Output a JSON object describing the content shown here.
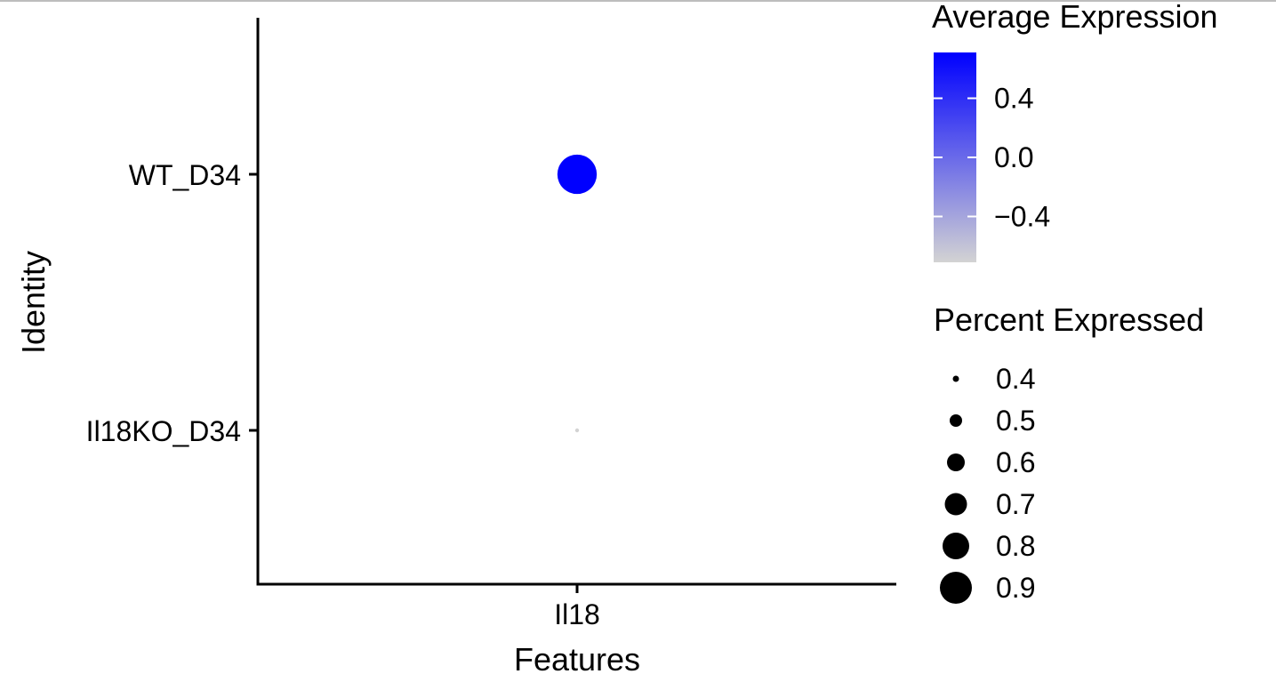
{
  "chart_data": {
    "type": "scatter",
    "subtype": "dot-plot",
    "xlabel": "Features",
    "ylabel": "Identity",
    "categories_x": [
      "Il18"
    ],
    "categories_y": [
      "WT_D34",
      "Il18KO_D34"
    ],
    "points": [
      {
        "feature": "Il18",
        "identity": "WT_D34",
        "avg_expression": 0.71,
        "pct_expressed": 0.8
      },
      {
        "feature": "Il18",
        "identity": "Il18KO_D34",
        "avg_expression": -0.71,
        "pct_expressed": 0.0
      }
    ],
    "color_legend": {
      "title": "Average Expression",
      "ticks": [
        "0.4",
        "0.0",
        "−0.4"
      ],
      "tick_values": [
        0.4,
        0.0,
        -0.4
      ],
      "range": [
        -0.71,
        0.71
      ],
      "low_color": "#d3d3d3",
      "high_color": "#0000ff"
    },
    "size_legend": {
      "title": "Percent Expressed",
      "labels": [
        "0.4",
        "0.5",
        "0.6",
        "0.7",
        "0.8",
        "0.9"
      ],
      "values": [
        0.4,
        0.5,
        0.6,
        0.7,
        0.8,
        0.9
      ]
    },
    "grid": false,
    "legend_position": "right"
  }
}
